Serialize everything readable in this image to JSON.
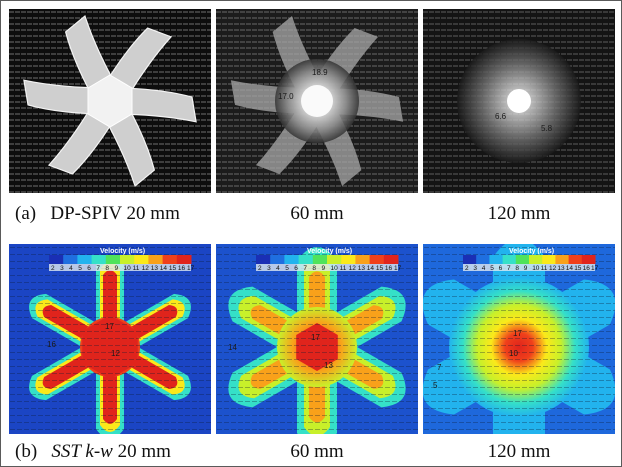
{
  "row_a": {
    "label": "(a)",
    "captions": [
      "DP-SPIV 20 mm",
      "60 mm",
      "120 mm"
    ],
    "contour_labels": [
      "18.9",
      "17.0",
      "6.6",
      "5.8"
    ]
  },
  "row_b": {
    "label": "(b)",
    "caption_model": "SST k-w",
    "caption_first_suffix": " 20 mm",
    "captions_rest": [
      "60 mm",
      "120 mm"
    ],
    "colorbar_title": "Velocity (m/s)",
    "colorbar_ticks": [
      "2",
      "3",
      "4",
      "5",
      "6",
      "7",
      "8",
      "9",
      "10",
      "11",
      "12",
      "13",
      "14",
      "15",
      "16",
      "17"
    ],
    "contour_labels_20": [
      "16",
      "17",
      "12"
    ],
    "contour_labels_60": [
      "14",
      "17",
      "13"
    ],
    "contour_labels_120": [
      "17",
      "10",
      "7",
      "5"
    ]
  },
  "colors": {
    "jet": [
      "#1a2fb5",
      "#1f6fe0",
      "#22b3ee",
      "#35e0c8",
      "#4fe35a",
      "#c8f02a",
      "#fbe91a",
      "#f9a11a",
      "#f0401b",
      "#e0241c"
    ]
  }
}
